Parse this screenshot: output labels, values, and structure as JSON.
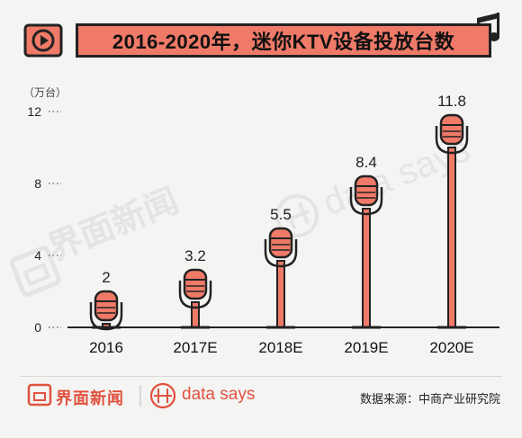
{
  "title": "2016-2020年，迷你KTV设备投放台数",
  "unit": "（万台）",
  "footer": {
    "logo_text": "界面新闻",
    "brand_text": "data says",
    "source": "数据来源：中商产业研究院"
  },
  "watermark": {
    "logo_text": "界面新闻",
    "brand_text": "data says"
  },
  "colors": {
    "accent": "#f07a68",
    "mic_fill": "#f07a68",
    "outline": "#222222",
    "brand": "#e0523e"
  },
  "icons": [
    "play-icon",
    "music-note-icon",
    "microphone-icon",
    "logo-mark-icon",
    "data-says-mark-icon"
  ],
  "chart_data": {
    "type": "bar",
    "title": "2016-2020年，迷你KTV设备投放台数",
    "xlabel": "",
    "ylabel": "（万台）",
    "categories": [
      "2016",
      "2017E",
      "2018E",
      "2019E",
      "2020E"
    ],
    "values": [
      2,
      3.2,
      5.5,
      8.4,
      11.8
    ],
    "value_labels": [
      "2",
      "3.2",
      "5.5",
      "8.4",
      "11.8"
    ],
    "yticks": [
      "0",
      "4",
      "8",
      "12"
    ],
    "ylim": [
      0,
      12
    ],
    "grid": false,
    "legend": "none"
  }
}
